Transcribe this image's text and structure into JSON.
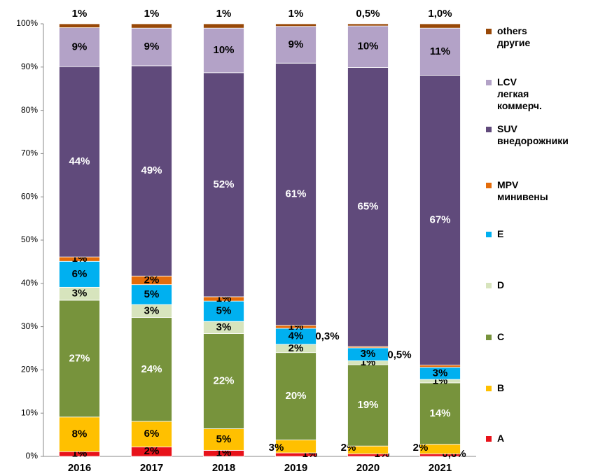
{
  "chart_data": {
    "type": "stacked_bar",
    "categories": [
      "2016",
      "2017",
      "2018",
      "2019",
      "2020",
      "2021"
    ],
    "ylim": [
      0,
      100
    ],
    "yticks": [
      {
        "value": 0,
        "label": "0%"
      },
      {
        "value": 10,
        "label": "10%"
      },
      {
        "value": 20,
        "label": "20%"
      },
      {
        "value": 30,
        "label": "30%"
      },
      {
        "value": 40,
        "label": "40%"
      },
      {
        "value": 50,
        "label": "50%"
      },
      {
        "value": 60,
        "label": "60%"
      },
      {
        "value": 70,
        "label": "70%"
      },
      {
        "value": 80,
        "label": "80%"
      },
      {
        "value": 90,
        "label": "90%"
      },
      {
        "value": 100,
        "label": "100%"
      }
    ],
    "legend": "right",
    "series": [
      {
        "name": "A",
        "color": "#e8121a",
        "values": [
          1.1,
          2.2,
          1.4,
          0.8,
          0.6,
          0.6
        ],
        "value_labels": [
          "1%",
          "2%",
          "1%",
          "1%",
          "1%",
          "0,6%"
        ]
      },
      {
        "name": "B",
        "color": "#ffc000",
        "values": [
          8,
          5.9,
          5,
          3,
          1.8,
          2.2
        ],
        "value_labels": [
          "8%",
          "6%",
          "5%",
          "3%",
          "2%",
          "2%"
        ]
      },
      {
        "name": "C",
        "color": "#77933c",
        "values": [
          27,
          24,
          22,
          20.2,
          18.8,
          14.2
        ],
        "value_labels": [
          "27%",
          "24%",
          "22%",
          "20%",
          "19%",
          "14%"
        ]
      },
      {
        "name": "D",
        "color": "#d7e4bd",
        "values": [
          3,
          3,
          2.8,
          1.9,
          0.9,
          0.8
        ],
        "value_labels": [
          "3%",
          "3%",
          "3%",
          "2%",
          "1%",
          "1%"
        ]
      },
      {
        "name": "E",
        "color": "#00b0f0",
        "values": [
          6,
          4.6,
          4.7,
          3.7,
          3,
          2.8
        ],
        "value_labels": [
          "6%",
          "5%",
          "5%",
          "4%",
          "3%",
          "3%"
        ]
      },
      {
        "name": "MPV\nминивены",
        "color": "#e46c0a",
        "values": [
          1,
          2,
          1,
          0.7,
          0.3,
          0.5
        ],
        "value_labels": [
          "1%",
          "2%",
          "1%",
          "1%",
          "0,3%",
          "0,5%"
        ]
      },
      {
        "name": "SUV\nвнедорожники",
        "color": "#604a7b",
        "values": [
          44,
          48.6,
          51.8,
          60.6,
          64.5,
          67
        ],
        "value_labels": [
          "44%",
          "49%",
          "52%",
          "61%",
          "65%",
          "67%"
        ]
      },
      {
        "name": "LCV\nлегкая\nкоммерч.",
        "color": "#b3a2c7",
        "values": [
          9,
          8.7,
          10.3,
          8.5,
          9.6,
          10.9
        ],
        "value_labels": [
          "9%",
          "9%",
          "10%",
          "9%",
          "10%",
          "11%"
        ]
      },
      {
        "name": "others\nдругие",
        "color": "#984807",
        "values": [
          0.9,
          1,
          1,
          0.6,
          0.5,
          1.0
        ],
        "value_labels": [
          "1%",
          "1%",
          "1%",
          "1%",
          "0,5%",
          "1,0%"
        ]
      }
    ]
  }
}
